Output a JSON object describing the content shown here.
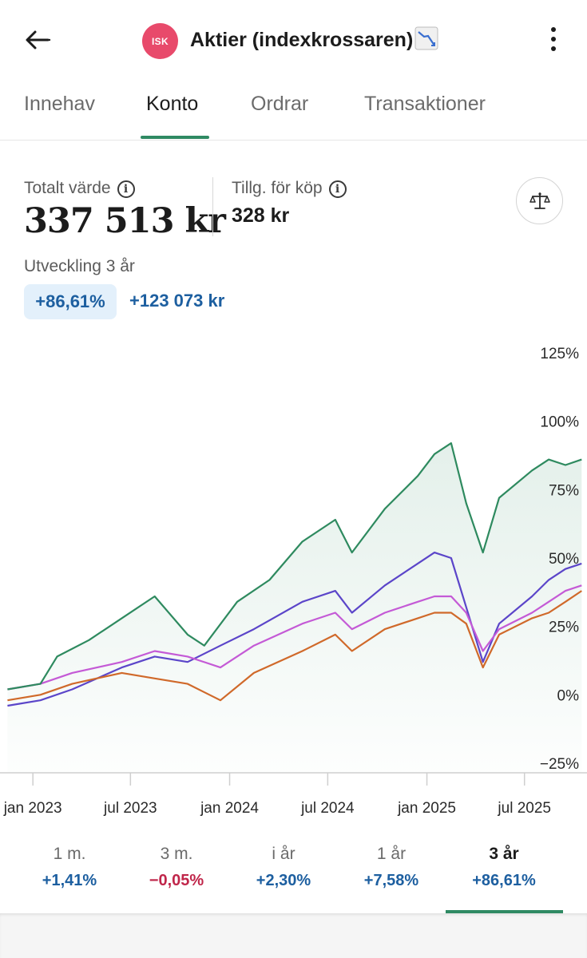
{
  "header": {
    "back_icon": "arrow-left-icon",
    "badge": "ISK",
    "title": "Aktier (indexkrossaren)",
    "title_emoji": "chart-decreasing-icon",
    "menu_icon": "more-vertical-icon"
  },
  "tabs": [
    {
      "label": "Innehav",
      "active": false
    },
    {
      "label": "Konto",
      "active": true
    },
    {
      "label": "Ordrar",
      "active": false
    },
    {
      "label": "Transaktioner",
      "active": false
    }
  ],
  "summary": {
    "total_label": "Totalt värde",
    "total_value": "337 513 kr",
    "available_label": "Tillg. för köp",
    "available_value": "328 kr",
    "info_icon": "info-icon",
    "compare_icon": "balance-scale-icon",
    "development_label": "Utveckling 3 år",
    "development_pct": "+86,61%",
    "development_amount": "+123 073 kr"
  },
  "chart_data": {
    "type": "line",
    "y_unit": "%",
    "ylim": [
      -25,
      125
    ],
    "y_ticks": [
      "125%",
      "100%",
      "75%",
      "50%",
      "25%",
      "0%",
      "−25%"
    ],
    "x_ticks": [
      "jan 2023",
      "jul 2023",
      "jan 2024",
      "jul 2024",
      "jan 2025",
      "jul 2025"
    ],
    "grid": false,
    "legend": "none",
    "series": [
      {
        "color": "#2e8a5f",
        "fill": true,
        "x": [
          "2022-11",
          "2023-01",
          "2023-02",
          "2023-04",
          "2023-06",
          "2023-08",
          "2023-10",
          "2023-11",
          "2024-01",
          "2024-03",
          "2024-05",
          "2024-07",
          "2024-08",
          "2024-10",
          "2024-12",
          "2025-01",
          "2025-02",
          "2025-03",
          "2025-04",
          "2025-05",
          "2025-07",
          "2025-08",
          "2025-09",
          "2025-10"
        ],
        "values": [
          2,
          4,
          14,
          20,
          28,
          36,
          22,
          18,
          34,
          42,
          56,
          64,
          52,
          68,
          80,
          88,
          92,
          70,
          52,
          72,
          82,
          86,
          84,
          86
        ]
      },
      {
        "color": "#5b45c9",
        "fill": false,
        "x": [
          "2022-11",
          "2023-01",
          "2023-03",
          "2023-06",
          "2023-08",
          "2023-10",
          "2023-12",
          "2024-02",
          "2024-05",
          "2024-07",
          "2024-08",
          "2024-10",
          "2024-12",
          "2025-01",
          "2025-02",
          "2025-03",
          "2025-04",
          "2025-05",
          "2025-07",
          "2025-08",
          "2025-09",
          "2025-10"
        ],
        "values": [
          -4,
          -2,
          2,
          10,
          14,
          12,
          18,
          24,
          34,
          38,
          30,
          40,
          48,
          52,
          50,
          32,
          12,
          26,
          36,
          42,
          46,
          48
        ]
      },
      {
        "color": "#c45ad6",
        "fill": false,
        "x": [
          "2022-11",
          "2023-01",
          "2023-03",
          "2023-06",
          "2023-08",
          "2023-10",
          "2023-12",
          "2024-02",
          "2024-05",
          "2024-07",
          "2024-08",
          "2024-10",
          "2024-12",
          "2025-01",
          "2025-02",
          "2025-03",
          "2025-04",
          "2025-05",
          "2025-07",
          "2025-08",
          "2025-09",
          "2025-10"
        ],
        "values": [
          2,
          4,
          8,
          12,
          16,
          14,
          10,
          18,
          26,
          30,
          24,
          30,
          34,
          36,
          36,
          30,
          16,
          24,
          30,
          34,
          38,
          40
        ]
      },
      {
        "color": "#d0692a",
        "fill": false,
        "x": [
          "2022-11",
          "2023-01",
          "2023-03",
          "2023-06",
          "2023-08",
          "2023-10",
          "2023-12",
          "2024-02",
          "2024-05",
          "2024-07",
          "2024-08",
          "2024-10",
          "2024-12",
          "2025-01",
          "2025-02",
          "2025-03",
          "2025-04",
          "2025-05",
          "2025-07",
          "2025-08",
          "2025-09",
          "2025-10"
        ],
        "values": [
          -2,
          0,
          4,
          8,
          6,
          4,
          -2,
          8,
          16,
          22,
          16,
          24,
          28,
          30,
          30,
          26,
          10,
          22,
          28,
          30,
          34,
          38
        ]
      }
    ]
  },
  "periods": [
    {
      "label": "1 m.",
      "value": "+1,41%",
      "trend": "pos",
      "active": false
    },
    {
      "label": "3 m.",
      "value": "−0,05%",
      "trend": "neg",
      "active": false
    },
    {
      "label": "i år",
      "value": "+2,30%",
      "trend": "pos",
      "active": false
    },
    {
      "label": "1 år",
      "value": "+7,58%",
      "trend": "pos",
      "active": false
    },
    {
      "label": "3 år",
      "value": "+86,61%",
      "trend": "pos",
      "active": true
    }
  ]
}
